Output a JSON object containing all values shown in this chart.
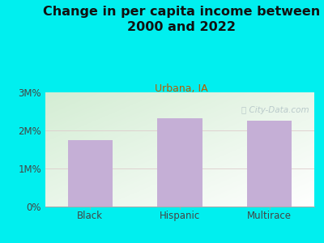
{
  "title": "Change in per capita income between\n2000 and 2022",
  "subtitle": "Urbana, IA",
  "categories": [
    "Black",
    "Hispanic",
    "Multirace"
  ],
  "values": [
    1750000,
    2320000,
    2260000
  ],
  "bar_color": "#c5afd6",
  "background_outer": "#00efef",
  "title_color": "#111111",
  "subtitle_color": "#b85c00",
  "tick_label_color": "#444444",
  "yticks": [
    0,
    1000000,
    2000000,
    3000000
  ],
  "ytick_labels": [
    "0%",
    "1M%",
    "2M%",
    "3M%"
  ],
  "ylim": [
    0,
    3000000
  ],
  "watermark": "ⓘ City-Data.com",
  "grid_color": "#ddcccc",
  "axes_color": "#aaaaaa",
  "plot_bg_colors": [
    "#d4edd4",
    "#f5f8f0",
    "#e8f4e8",
    "#ffffff"
  ],
  "title_fontsize": 11.5,
  "subtitle_fontsize": 9,
  "tick_fontsize": 8.5
}
